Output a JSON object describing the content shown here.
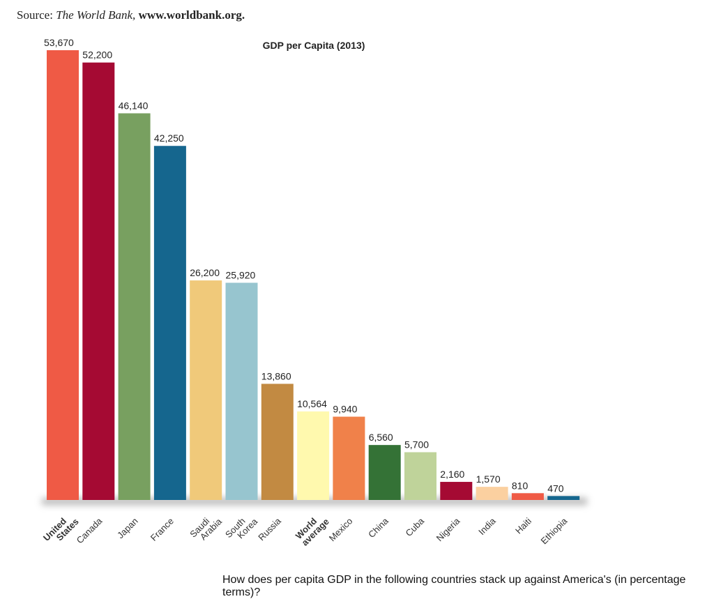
{
  "source": {
    "prefix": "Source: ",
    "publisher": "The World Bank,",
    "url": " www.worldbank.org."
  },
  "question": "How does per capita GDP in the following countries stack up against America's (in percentage terms)?",
  "chart_data": {
    "type": "bar",
    "title": "GDP per Capita (2013)",
    "xlabel": "",
    "ylabel": "",
    "ylim": [
      0,
      53670
    ],
    "grid": false,
    "categories": [
      "United States",
      "Canada",
      "Japan",
      "France",
      "Saudi Arabia",
      "South Korea",
      "Russia",
      "World average",
      "Mexico",
      "China",
      "Cuba",
      "Nigeria",
      "India",
      "Haiti",
      "Ethiopia"
    ],
    "values": [
      53670,
      52200,
      46140,
      42250,
      26200,
      25920,
      13860,
      10564,
      9940,
      6560,
      5700,
      2160,
      1570,
      810,
      470
    ],
    "data_labels": [
      "53,670",
      "52,200",
      "46,140",
      "42,250",
      "26,200",
      "25,920",
      "13,860",
      "10,564",
      "9,940",
      "6,560",
      "5,700",
      "2,160",
      "1,570",
      "810",
      "470"
    ],
    "bold_categories": [
      "United States",
      "World average"
    ],
    "colors": [
      "#ef5a45",
      "#a50a33",
      "#78a060",
      "#15668e",
      "#f0c97a",
      "#97c5cf",
      "#c28a42",
      "#fff9ae",
      "#f0814a",
      "#347236",
      "#bfd39a",
      "#a50a33",
      "#fbd0a0",
      "#ef5a45",
      "#15668e"
    ]
  }
}
